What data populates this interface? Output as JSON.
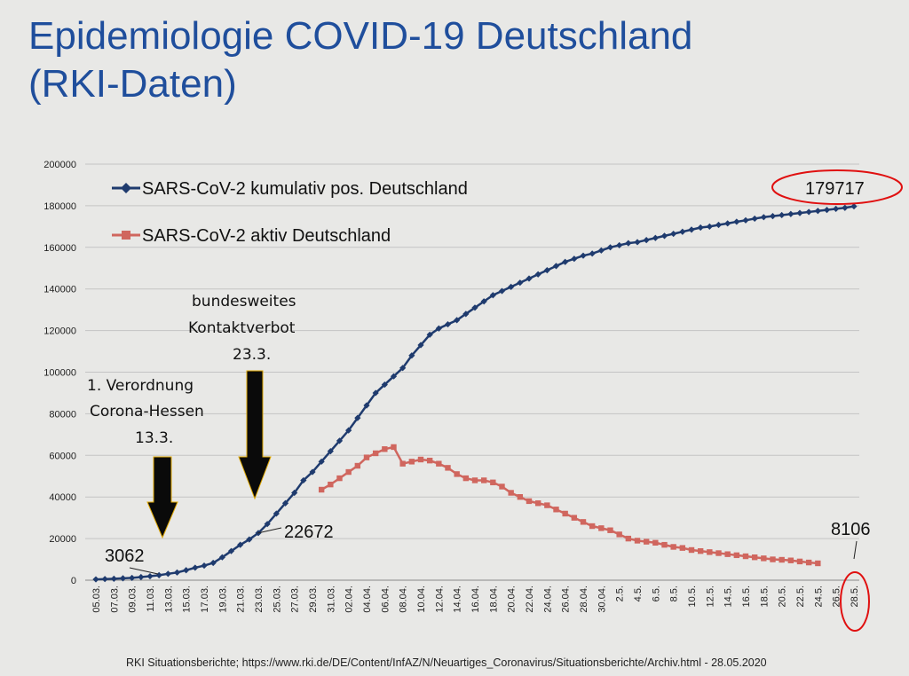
{
  "title_line1": "Epidemiologie COVID-19 Deutschland",
  "title_line2": "(RKI-Daten)",
  "source": "RKI Situationsberichte; https://www.rki.de/DE/Content/InfAZ/N/Neuartiges_Coronavirus/Situationsberichte/Archiv.html - 28.05.2020",
  "colors": {
    "cumulative": "#1f3b6e",
    "active": "#d0665e",
    "highlight": "#e01010",
    "arrow": "#0a0a0a"
  },
  "annotations": {
    "verordnung": [
      "1.   Verordnung",
      "Corona-Hessen",
      "13.3."
    ],
    "kontaktverbot": [
      "bundesweites",
      "Kontaktverbot",
      "23.3."
    ],
    "value_3062": "3062",
    "value_22672": "22672",
    "value_179717": "179717",
    "value_8106": "8106"
  },
  "chart_data": {
    "type": "line",
    "xlabel": "",
    "ylabel": "",
    "ylim": [
      0,
      200000
    ],
    "yticks": [
      0,
      20000,
      40000,
      60000,
      80000,
      100000,
      120000,
      140000,
      160000,
      180000,
      200000
    ],
    "xticks": [
      "05.03.",
      "07.03.",
      "09.03.",
      "11.03.",
      "13.03.",
      "15.03.",
      "17.03.",
      "19.03.",
      "21.03.",
      "23.03.",
      "25.03.",
      "27.03.",
      "29.03.",
      "31.03.",
      "02.04.",
      "04.04.",
      "06.04.",
      "08.04.",
      "10.04.",
      "12.04.",
      "14.04.",
      "16.04.",
      "18.04.",
      "20.04.",
      "22.04.",
      "24.04.",
      "26.04.",
      "28.04.",
      "30.04.",
      "2.5.",
      "4.5.",
      "6.5.",
      "8.5.",
      "10.5.",
      "12.5.",
      "14.5.",
      "16.5.",
      "18.5.",
      "20.5.",
      "22.5.",
      "24.5.",
      "26.5.",
      "28.5."
    ],
    "grid": true,
    "legend_position": "top-left",
    "series": [
      {
        "name": "SARS-CoV-2 kumulativ pos. Deutschland",
        "start_date": "05.03.",
        "values": [
          400,
          550,
          700,
          900,
          1100,
          1500,
          1900,
          2400,
          3062,
          3700,
          4800,
          6000,
          7000,
          8300,
          11000,
          14000,
          17000,
          19600,
          22672,
          27000,
          32000,
          37000,
          42000,
          48000,
          52000,
          57000,
          62000,
          67000,
          72000,
          78000,
          84000,
          90000,
          94000,
          98000,
          102000,
          108000,
          113000,
          118000,
          121000,
          123000,
          125000,
          128000,
          131000,
          134000,
          137000,
          139000,
          141000,
          143000,
          145000,
          147000,
          149000,
          151000,
          153000,
          154500,
          156000,
          157000,
          158500,
          160000,
          161000,
          162000,
          162500,
          163500,
          164500,
          165500,
          166500,
          167500,
          168500,
          169500,
          170000,
          170800,
          171500,
          172300,
          173000,
          173800,
          174500,
          175000,
          175500,
          176000,
          176500,
          177000,
          177500,
          178000,
          178500,
          179000,
          179717
        ]
      },
      {
        "name": "SARS-CoV-2 aktiv Deutschland",
        "start_date": "30.03.",
        "values": [
          43500,
          46000,
          49000,
          52000,
          55000,
          59000,
          61000,
          63000,
          64000,
          56000,
          57000,
          58000,
          57500,
          56000,
          54000,
          51000,
          49000,
          48000,
          48000,
          47000,
          45000,
          42000,
          40000,
          38000,
          37000,
          36000,
          34000,
          32000,
          30000,
          28000,
          26000,
          25000,
          24000,
          22000,
          20000,
          19000,
          18500,
          18000,
          17000,
          16000,
          15500,
          14500,
          14000,
          13500,
          13000,
          12500,
          12000,
          11500,
          11000,
          10500,
          10000,
          9800,
          9500,
          9000,
          8500,
          8106
        ]
      }
    ]
  }
}
